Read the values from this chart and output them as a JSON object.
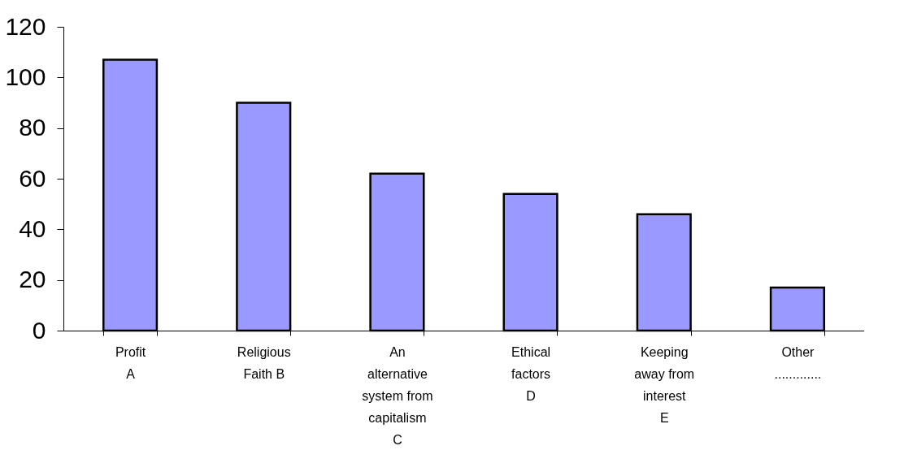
{
  "chart_data": {
    "type": "bar",
    "categories": [
      "Profit\n           A",
      "Religious\nFaith   B",
      "An\nalternative\nsystem from\ncapitalism\nC",
      "Ethical\nfactors\n           D",
      "Keeping\naway from\ninterest\n           E",
      "Other\n............."
    ],
    "values": [
      107,
      90,
      62,
      54,
      46,
      17
    ],
    "color": "#9999ff",
    "ylim": [
      0,
      120
    ],
    "yticks": [
      0,
      20,
      40,
      60,
      80,
      100,
      120
    ],
    "grid": false
  }
}
